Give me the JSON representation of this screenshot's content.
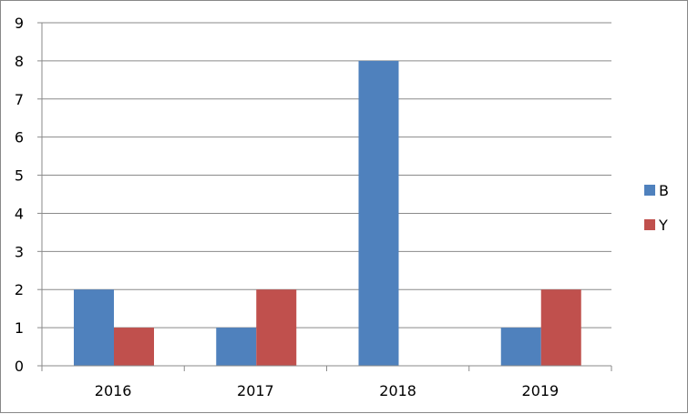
{
  "chart_data": {
    "type": "bar",
    "title": "",
    "xlabel": "",
    "ylabel": "",
    "categories": [
      "2016",
      "2017",
      "2018",
      "2019"
    ],
    "series": [
      {
        "name": "B",
        "values": [
          2,
          1,
          8,
          1
        ],
        "color": "#4F81BD"
      },
      {
        "name": "Y",
        "values": [
          1,
          2,
          0,
          2
        ],
        "color": "#C0504D"
      }
    ],
    "ylim": [
      0,
      9
    ],
    "yticks": [
      "0",
      "1",
      "2",
      "3",
      "4",
      "5",
      "6",
      "7",
      "8",
      "9"
    ],
    "grid": true,
    "legend_position": "right"
  }
}
